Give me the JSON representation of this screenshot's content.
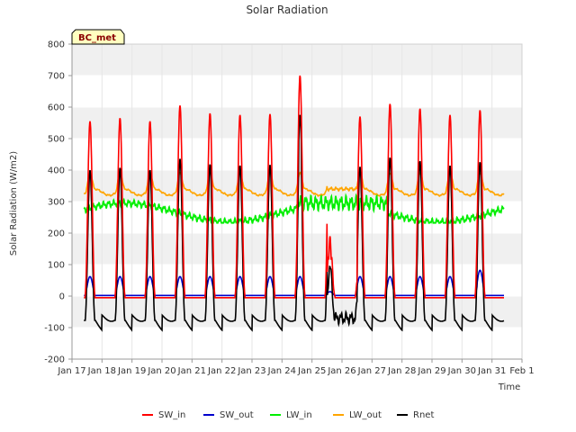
{
  "chart_data": {
    "type": "line",
    "title": "Solar Radiation",
    "xlabel": "Time",
    "ylabel": "Solar Radiation (W/m2)",
    "station": "BC_met",
    "ylim": [
      -200,
      800
    ],
    "yticks": [
      -200,
      -100,
      0,
      100,
      200,
      300,
      400,
      500,
      600,
      700,
      800
    ],
    "xlim": [
      0,
      15
    ],
    "xtick_labels": [
      "Jan 17",
      "Jan 18",
      "Jan 19",
      "Jan 20",
      "Jan 21",
      "Jan 22",
      "Jan 23",
      "Jan 24",
      "Jan 25",
      "Jan 26",
      "Jan 27",
      "Jan 28",
      "Jan 29",
      "Jan 30",
      "Jan 31",
      "Feb 1"
    ],
    "day_peaks_sw_in": [
      555,
      565,
      555,
      605,
      580,
      575,
      578,
      700,
      190,
      570,
      610,
      595,
      575,
      590
    ],
    "series": [
      {
        "name": "SW_in",
        "color": "#ff0000",
        "night": -5,
        "daily_peak_key": "day_peaks_sw_in"
      },
      {
        "name": "SW_out",
        "color": "#0000cc",
        "night": 2,
        "typical_peak": 60
      },
      {
        "name": "LW_in",
        "color": "#00ee00",
        "range": [
          230,
          330
        ]
      },
      {
        "name": "LW_out",
        "color": "#ffa500",
        "range": [
          310,
          395
        ]
      },
      {
        "name": "Rnet",
        "color": "#000000",
        "range": [
          -110,
          575
        ]
      }
    ],
    "legend": [
      "SW_in",
      "SW_out",
      "LW_in",
      "LW_out",
      "Rnet"
    ],
    "legend_position": "bottom"
  }
}
